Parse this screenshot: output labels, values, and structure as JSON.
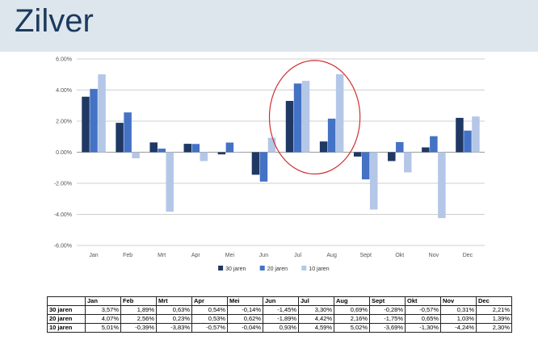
{
  "title": "Zilver",
  "chart_data": {
    "type": "bar",
    "categories": [
      "Jan",
      "Feb",
      "Mrt",
      "Apr",
      "Mei",
      "Jun",
      "Jul",
      "Aug",
      "Sept",
      "Okt",
      "Nov",
      "Dec"
    ],
    "series": [
      {
        "name": "30 jaren",
        "color": "#1f3864",
        "values": [
          3.57,
          1.89,
          0.63,
          0.54,
          -0.14,
          -1.45,
          3.3,
          0.69,
          -0.28,
          -0.57,
          0.31,
          2.21
        ]
      },
      {
        "name": "20 jaren",
        "color": "#4472c4",
        "values": [
          4.07,
          2.56,
          0.23,
          0.53,
          0.62,
          -1.89,
          4.42,
          2.16,
          -1.75,
          0.65,
          1.03,
          1.39
        ]
      },
      {
        "name": "10 jaren",
        "color": "#b4c7e7",
        "values": [
          5.01,
          -0.39,
          -3.83,
          -0.57,
          -0.04,
          0.93,
          4.59,
          5.02,
          -3.69,
          -1.3,
          -4.24,
          2.3
        ]
      }
    ],
    "ylim": [
      -6,
      6
    ],
    "yticks": [
      "6.00%",
      "4.00%",
      "2.00%",
      "0.00%",
      "-2.00%",
      "-4.00%",
      "-6.00%"
    ],
    "ytick_values": [
      6,
      4,
      2,
      0,
      -2,
      -4,
      -6
    ],
    "grid": true,
    "legend": "bottom-center",
    "annotation": {
      "shape": "circle",
      "color": "#d03030",
      "around_categories": [
        "Jul",
        "Aug"
      ]
    }
  },
  "table": {
    "headers": [
      "Jan",
      "Feb",
      "Mrt",
      "Apr",
      "Mei",
      "Jun",
      "Jul",
      "Aug",
      "Sept",
      "Okt",
      "Nov",
      "Dec"
    ],
    "rows": [
      {
        "label": "30 jaren",
        "cells": [
          "3,57%",
          "1,89%",
          "0,63%",
          "0,54%",
          "-0,14%",
          "-1,45%",
          "3,30%",
          "0,69%",
          "-0,28%",
          "-0,57%",
          "0,31%",
          "2,21%"
        ]
      },
      {
        "label": "20 jaren",
        "cells": [
          "4,07%",
          "2,56%",
          "0,23%",
          "0,53%",
          "0,62%",
          "-1,89%",
          "4,42%",
          "2,16%",
          "-1,75%",
          "0,65%",
          "1,03%",
          "1,39%"
        ]
      },
      {
        "label": "10 jaren",
        "cells": [
          "5,01%",
          "-0,39%",
          "-3,83%",
          "-0,57%",
          "-0,04%",
          "0,93%",
          "4,59%",
          "5,02%",
          "-3,69%",
          "-1,30%",
          "-4,24%",
          "2,30%"
        ]
      }
    ]
  }
}
